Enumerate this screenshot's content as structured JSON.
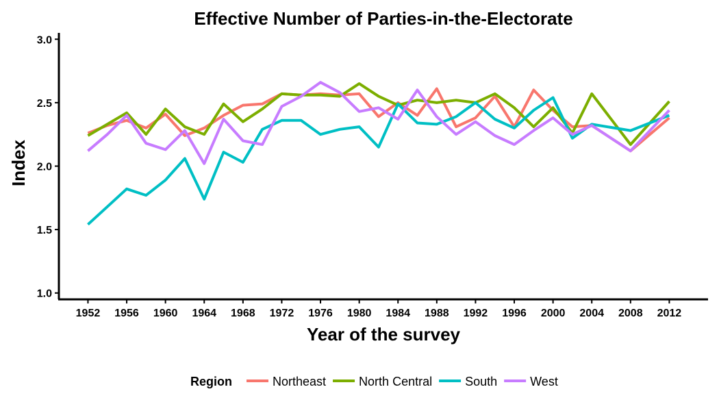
{
  "chart_data": {
    "type": "line",
    "title": "Effective Number of Parties-in-the-Electorate",
    "xlabel": "Year of the survey",
    "ylabel": "Index",
    "xlim": [
      1949,
      2016
    ],
    "ylim": [
      0.95,
      3.05
    ],
    "x_ticks": [
      "1952",
      "1956",
      "1960",
      "1964",
      "1968",
      "1972",
      "1976",
      "1980",
      "1984",
      "1988",
      "1992",
      "1996",
      "2000",
      "2004",
      "2008",
      "2012"
    ],
    "y_ticks": [
      "1.0",
      "1.5",
      "2.0",
      "2.5",
      "3.0"
    ],
    "grid": false,
    "legend": {
      "title": "Region",
      "position": "bottom"
    },
    "x": [
      1952,
      1954,
      1956,
      1958,
      1960,
      1962,
      1964,
      1966,
      1968,
      1970,
      1972,
      1974,
      1976,
      1978,
      1980,
      1982,
      1984,
      1986,
      1988,
      1990,
      1992,
      1994,
      1996,
      1998,
      2000,
      2002,
      2004,
      2008,
      2012
    ],
    "series": [
      {
        "name": "Northeast",
        "color": "#F8766D",
        "values": [
          2.26,
          2.32,
          2.36,
          2.3,
          2.41,
          2.24,
          2.3,
          2.4,
          2.48,
          2.49,
          2.57,
          2.56,
          2.57,
          2.56,
          2.57,
          2.39,
          2.5,
          2.4,
          2.61,
          2.31,
          2.38,
          2.55,
          2.31,
          2.6,
          2.44,
          2.31,
          2.32,
          2.12,
          2.38
        ]
      },
      {
        "name": "North Central",
        "color": "#7CAE00",
        "values": [
          2.24,
          2.33,
          2.42,
          2.25,
          2.45,
          2.31,
          2.25,
          2.49,
          2.35,
          2.45,
          2.57,
          2.56,
          2.56,
          2.55,
          2.65,
          2.55,
          2.48,
          2.52,
          2.5,
          2.52,
          2.5,
          2.57,
          2.46,
          2.31,
          2.46,
          2.26,
          2.57,
          2.17,
          2.51
        ]
      },
      {
        "name": "South",
        "color": "#00BFC4",
        "values": [
          1.54,
          1.68,
          1.82,
          1.77,
          1.89,
          2.06,
          1.74,
          2.11,
          2.03,
          2.29,
          2.36,
          2.36,
          2.25,
          2.29,
          2.31,
          2.15,
          2.49,
          2.34,
          2.33,
          2.39,
          2.5,
          2.37,
          2.3,
          2.44,
          2.54,
          2.22,
          2.33,
          2.28,
          2.4
        ]
      },
      {
        "name": "West",
        "color": "#C77CFF",
        "values": [
          2.12,
          2.25,
          2.4,
          2.18,
          2.13,
          2.28,
          2.02,
          2.37,
          2.2,
          2.17,
          2.47,
          2.55,
          2.66,
          2.58,
          2.43,
          2.46,
          2.37,
          2.6,
          2.39,
          2.25,
          2.35,
          2.24,
          2.17,
          2.28,
          2.38,
          2.25,
          2.32,
          2.12,
          2.44
        ]
      }
    ]
  }
}
